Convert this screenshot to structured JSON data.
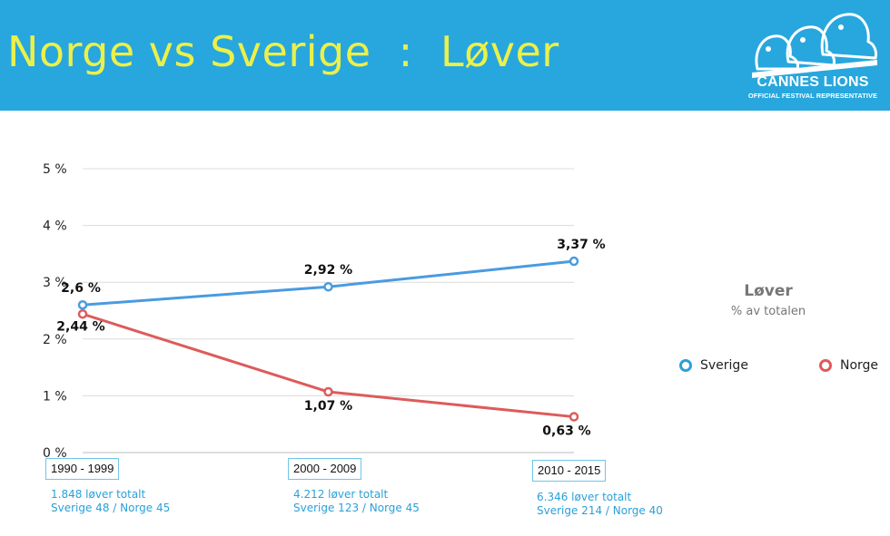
{
  "header": {
    "title": "Norge vs Sverige  :  Løver",
    "logo_name": "CANNES LIONS",
    "logo_sub": "OFFICIAL FESTIVAL REPRESENTATIVE"
  },
  "colors": {
    "header_bg": "#27a7dd",
    "title": "#ecf04a",
    "sverige": "#4a9be0",
    "norge": "#dd5b5b",
    "note_text": "#2aa0d8"
  },
  "chart_data": {
    "type": "line",
    "categories": [
      "1990 - 1999",
      "2000 - 2009",
      "2010 - 2015"
    ],
    "series": [
      {
        "name": "Sverige",
        "values": [
          2.6,
          2.92,
          3.37
        ],
        "labels": [
          "2,6  %",
          "2,92  %",
          "3,37  %"
        ]
      },
      {
        "name": "Norge",
        "values": [
          2.44,
          1.07,
          0.63
        ],
        "labels": [
          "2,44  %",
          "1,07  %",
          "0,63  %"
        ]
      }
    ],
    "ylim": [
      0,
      5
    ],
    "y_ticks": [
      0,
      1,
      2,
      3,
      4,
      5
    ],
    "y_tick_labels": [
      "0  %",
      "1  %",
      "2  %",
      "3  %",
      "4  %",
      "5  %"
    ],
    "grid": true,
    "legend_position": "right",
    "title": "Løver",
    "subtitle": "% av totalen"
  },
  "period_notes": [
    {
      "total": "1.848 løver totalt",
      "split": "Sverige 48 / Norge 45"
    },
    {
      "total": "4.212 løver totalt",
      "split": "Sverige 123 / Norge 45"
    },
    {
      "total": "6.346 løver totalt",
      "split": "Sverige 214 / Norge 40"
    }
  ]
}
